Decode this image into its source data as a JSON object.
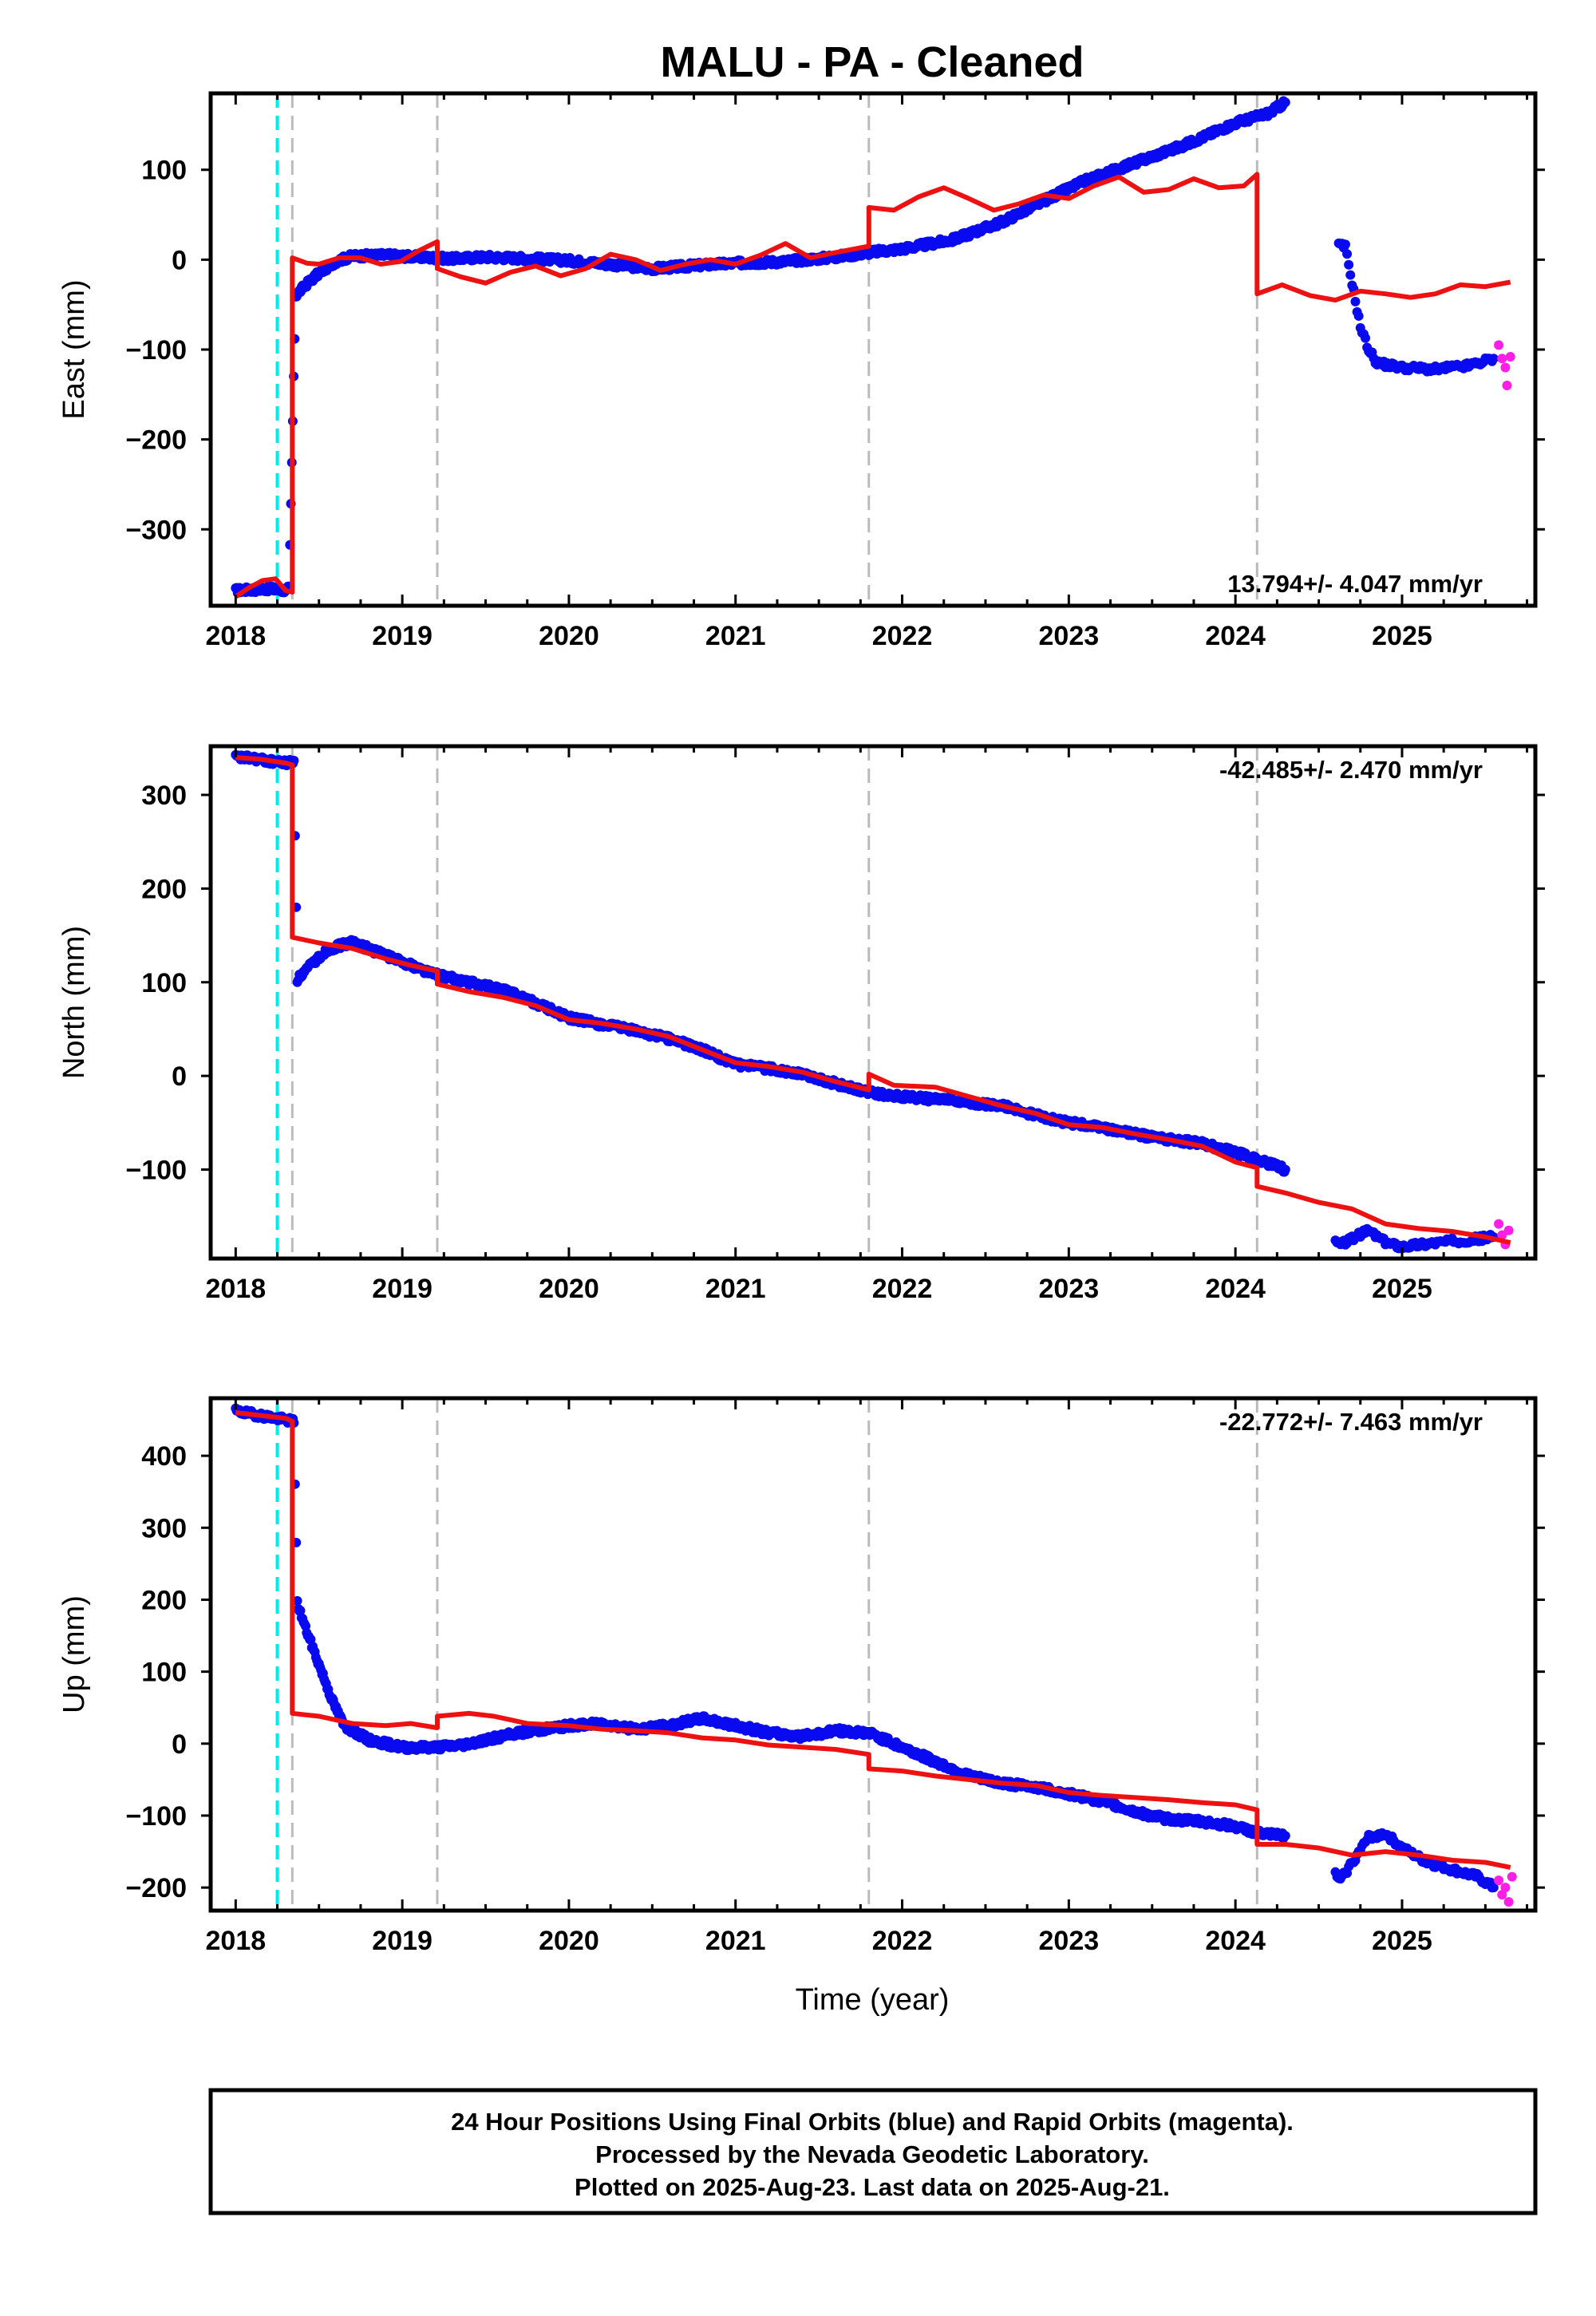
{
  "title": "MALU  - PA - Cleaned",
  "xlabel": "Time (year)",
  "footer": [
    "24 Hour Positions Using Final Orbits (blue) and Rapid Orbits (magenta).",
    "Processed by the Nevada Geodetic Laboratory.",
    "Plotted on 2025-Aug-23. Last data on 2025-Aug-21."
  ],
  "colors": {
    "final": "#0a0af0",
    "rapid": "#ff1ee6",
    "model": "#ee1111",
    "event_cyan": "#00e8ee",
    "event_gray": "#bbbbbb"
  },
  "chart_data": [
    {
      "type": "scatter",
      "panel": "east",
      "ylabel": "East (mm)",
      "xlim": [
        2017.85,
        2025.8
      ],
      "ylim": [
        -385,
        185
      ],
      "yticks": [
        -300,
        -200,
        -100,
        0,
        100
      ],
      "xticks": [
        2018,
        2019,
        2020,
        2021,
        2022,
        2023,
        2024,
        2025
      ],
      "rate_text": "13.794+/- 4.047 mm/yr",
      "rate_position": "bottom-right",
      "events_cyan": [
        2018.25
      ],
      "events_gray": [
        2018.34,
        2019.21,
        2021.8,
        2024.13
      ],
      "final_series": [
        [
          2018.0,
          -368
        ],
        [
          2018.1,
          -367
        ],
        [
          2018.2,
          -366
        ],
        [
          2018.28,
          -368
        ],
        [
          2018.32,
          -366
        ],
        [
          2018.36,
          -40
        ],
        [
          2018.42,
          -28
        ],
        [
          2018.5,
          -15
        ],
        [
          2018.6,
          -2
        ],
        [
          2018.7,
          4
        ],
        [
          2018.9,
          5
        ],
        [
          2019.1,
          3
        ],
        [
          2019.3,
          1
        ],
        [
          2019.5,
          3
        ],
        [
          2019.8,
          1
        ],
        [
          2020.0,
          -1
        ],
        [
          2020.3,
          -6
        ],
        [
          2020.5,
          -10
        ],
        [
          2020.8,
          -6
        ],
        [
          2021.0,
          -4
        ],
        [
          2021.3,
          -2
        ],
        [
          2021.6,
          3
        ],
        [
          2021.8,
          8
        ],
        [
          2022.0,
          12
        ],
        [
          2022.3,
          22
        ],
        [
          2022.6,
          42
        ],
        [
          2022.9,
          70
        ],
        [
          2023.1,
          88
        ],
        [
          2023.4,
          108
        ],
        [
          2023.7,
          128
        ],
        [
          2024.0,
          152
        ],
        [
          2024.2,
          163
        ],
        [
          2024.3,
          175
        ]
      ],
      "final_gap_series": [
        [
          2024.62,
          16
        ],
        [
          2024.66,
          14
        ],
        [
          2024.75,
          -75
        ],
        [
          2024.8,
          -100
        ],
        [
          2024.85,
          -115
        ],
        [
          2025.0,
          -120
        ],
        [
          2025.2,
          -122
        ],
        [
          2025.4,
          -118
        ],
        [
          2025.55,
          -110
        ]
      ],
      "rapid_series": [
        [
          2025.58,
          -95
        ],
        [
          2025.6,
          -110
        ],
        [
          2025.62,
          -120
        ],
        [
          2025.63,
          -140
        ],
        [
          2025.65,
          -108
        ]
      ],
      "model_series": [
        [
          2018.0,
          -375
        ],
        [
          2018.08,
          -365
        ],
        [
          2018.16,
          -357
        ],
        [
          2018.24,
          -355
        ],
        [
          2018.3,
          -368
        ],
        [
          2018.34,
          -370
        ],
        [
          2018.34,
          2
        ],
        [
          2018.43,
          -4
        ],
        [
          2018.5,
          -5
        ],
        [
          2018.62,
          2
        ],
        [
          2018.75,
          2
        ],
        [
          2018.87,
          -5
        ],
        [
          2018.99,
          -2
        ],
        [
          2019.1,
          10
        ],
        [
          2019.21,
          20
        ],
        [
          2019.21,
          -10
        ],
        [
          2019.35,
          -19
        ],
        [
          2019.5,
          -26
        ],
        [
          2019.65,
          -14
        ],
        [
          2019.8,
          -7
        ],
        [
          2019.95,
          -18
        ],
        [
          2020.1,
          -10
        ],
        [
          2020.25,
          6
        ],
        [
          2020.4,
          0
        ],
        [
          2020.55,
          -12
        ],
        [
          2020.7,
          -5
        ],
        [
          2020.85,
          0
        ],
        [
          2021.0,
          -5
        ],
        [
          2021.15,
          5
        ],
        [
          2021.3,
          18
        ],
        [
          2021.45,
          2
        ],
        [
          2021.6,
          8
        ],
        [
          2021.8,
          15
        ],
        [
          2021.8,
          58
        ],
        [
          2021.95,
          55
        ],
        [
          2022.1,
          70
        ],
        [
          2022.25,
          80
        ],
        [
          2022.4,
          68
        ],
        [
          2022.55,
          55
        ],
        [
          2022.7,
          62
        ],
        [
          2022.85,
          72
        ],
        [
          2023.0,
          68
        ],
        [
          2023.15,
          82
        ],
        [
          2023.3,
          92
        ],
        [
          2023.45,
          75
        ],
        [
          2023.6,
          78
        ],
        [
          2023.75,
          90
        ],
        [
          2023.9,
          80
        ],
        [
          2024.05,
          82
        ],
        [
          2024.13,
          95
        ],
        [
          2024.13,
          -38
        ],
        [
          2024.28,
          -28
        ],
        [
          2024.45,
          -40
        ],
        [
          2024.6,
          -45
        ],
        [
          2024.75,
          -35
        ],
        [
          2024.9,
          -38
        ],
        [
          2025.05,
          -42
        ],
        [
          2025.2,
          -38
        ],
        [
          2025.35,
          -28
        ],
        [
          2025.5,
          -30
        ],
        [
          2025.65,
          -25
        ]
      ]
    },
    {
      "type": "scatter",
      "panel": "north",
      "ylabel": "North (mm)",
      "xlim": [
        2017.85,
        2025.8
      ],
      "ylim": [
        -195,
        352
      ],
      "yticks": [
        -100,
        0,
        100,
        200,
        300
      ],
      "xticks": [
        2018,
        2019,
        2020,
        2021,
        2022,
        2023,
        2024,
        2025
      ],
      "rate_text": "-42.485+/- 2.470 mm/yr",
      "rate_position": "top-right",
      "events_cyan": [
        2018.25
      ],
      "events_gray": [
        2018.34,
        2019.21,
        2021.8,
        2024.13
      ],
      "final_series": [
        [
          2018.0,
          340
        ],
        [
          2018.1,
          339
        ],
        [
          2018.2,
          336
        ],
        [
          2018.3,
          334
        ],
        [
          2018.35,
          336
        ],
        [
          2018.37,
          103
        ],
        [
          2018.45,
          118
        ],
        [
          2018.55,
          135
        ],
        [
          2018.7,
          143
        ],
        [
          2018.85,
          132
        ],
        [
          2019.0,
          122
        ],
        [
          2019.2,
          108
        ],
        [
          2019.4,
          100
        ],
        [
          2019.6,
          92
        ],
        [
          2019.8,
          78
        ],
        [
          2020.0,
          62
        ],
        [
          2020.2,
          55
        ],
        [
          2020.4,
          48
        ],
        [
          2020.6,
          40
        ],
        [
          2020.8,
          28
        ],
        [
          2021.0,
          12
        ],
        [
          2021.2,
          8
        ],
        [
          2021.4,
          2
        ],
        [
          2021.6,
          -8
        ],
        [
          2021.8,
          -18
        ],
        [
          2022.0,
          -22
        ],
        [
          2022.2,
          -25
        ],
        [
          2022.4,
          -28
        ],
        [
          2022.6,
          -32
        ],
        [
          2022.8,
          -42
        ],
        [
          2023.0,
          -50
        ],
        [
          2023.2,
          -55
        ],
        [
          2023.4,
          -62
        ],
        [
          2023.6,
          -68
        ],
        [
          2023.8,
          -72
        ],
        [
          2024.0,
          -82
        ],
        [
          2024.15,
          -90
        ],
        [
          2024.3,
          -100
        ]
      ],
      "final_gap_series": [
        [
          2024.6,
          -178
        ],
        [
          2024.63,
          -180
        ],
        [
          2024.8,
          -165
        ],
        [
          2024.9,
          -178
        ],
        [
          2025.0,
          -182
        ],
        [
          2025.2,
          -178
        ],
        [
          2025.4,
          -175
        ],
        [
          2025.55,
          -172
        ]
      ],
      "rapid_series": [
        [
          2025.58,
          -158
        ],
        [
          2025.6,
          -170
        ],
        [
          2025.62,
          -180
        ],
        [
          2025.64,
          -165
        ]
      ],
      "model_series": [
        [
          2018.0,
          340
        ],
        [
          2018.15,
          338
        ],
        [
          2018.3,
          334
        ],
        [
          2018.34,
          332
        ],
        [
          2018.34,
          148
        ],
        [
          2018.5,
          142
        ],
        [
          2018.7,
          136
        ],
        [
          2018.9,
          125
        ],
        [
          2019.05,
          118
        ],
        [
          2019.21,
          112
        ],
        [
          2019.21,
          98
        ],
        [
          2019.4,
          90
        ],
        [
          2019.6,
          84
        ],
        [
          2019.8,
          75
        ],
        [
          2020.0,
          60
        ],
        [
          2020.2,
          56
        ],
        [
          2020.4,
          50
        ],
        [
          2020.6,
          42
        ],
        [
          2020.8,
          28
        ],
        [
          2021.0,
          14
        ],
        [
          2021.2,
          10
        ],
        [
          2021.4,
          4
        ],
        [
          2021.6,
          -6
        ],
        [
          2021.8,
          -15
        ],
        [
          2021.8,
          2
        ],
        [
          2021.95,
          -10
        ],
        [
          2022.2,
          -12
        ],
        [
          2022.4,
          -22
        ],
        [
          2022.6,
          -32
        ],
        [
          2022.8,
          -40
        ],
        [
          2023.0,
          -52
        ],
        [
          2023.2,
          -55
        ],
        [
          2023.4,
          -62
        ],
        [
          2023.6,
          -68
        ],
        [
          2023.8,
          -75
        ],
        [
          2024.0,
          -92
        ],
        [
          2024.13,
          -98
        ],
        [
          2024.13,
          -118
        ],
        [
          2024.3,
          -125
        ],
        [
          2024.5,
          -135
        ],
        [
          2024.7,
          -142
        ],
        [
          2024.9,
          -158
        ],
        [
          2025.1,
          -163
        ],
        [
          2025.3,
          -166
        ],
        [
          2025.5,
          -172
        ],
        [
          2025.65,
          -178
        ]
      ]
    },
    {
      "type": "scatter",
      "panel": "up",
      "ylabel": "Up (mm)",
      "xlim": [
        2017.85,
        2025.8
      ],
      "ylim": [
        -232,
        480
      ],
      "yticks": [
        -200,
        -100,
        0,
        100,
        200,
        300,
        400
      ],
      "xticks": [
        2018,
        2019,
        2020,
        2021,
        2022,
        2023,
        2024,
        2025
      ],
      "rate_text": "-22.772+/- 7.463 mm/yr",
      "rate_position": "top-right",
      "events_cyan": [
        2018.25
      ],
      "events_gray": [
        2018.34,
        2019.21,
        2021.8,
        2024.13
      ],
      "final_series": [
        [
          2018.0,
          462
        ],
        [
          2018.1,
          458
        ],
        [
          2018.2,
          454
        ],
        [
          2018.3,
          450
        ],
        [
          2018.35,
          448
        ],
        [
          2018.37,
          195
        ],
        [
          2018.42,
          160
        ],
        [
          2018.5,
          110
        ],
        [
          2018.58,
          60
        ],
        [
          2018.65,
          25
        ],
        [
          2018.8,
          5
        ],
        [
          2019.0,
          -5
        ],
        [
          2019.2,
          -5
        ],
        [
          2019.35,
          -2
        ],
        [
          2019.5,
          5
        ],
        [
          2019.7,
          15
        ],
        [
          2020.0,
          25
        ],
        [
          2020.2,
          28
        ],
        [
          2020.4,
          20
        ],
        [
          2020.6,
          25
        ],
        [
          2020.8,
          35
        ],
        [
          2021.0,
          25
        ],
        [
          2021.2,
          15
        ],
        [
          2021.4,
          10
        ],
        [
          2021.6,
          18
        ],
        [
          2021.8,
          15
        ],
        [
          2022.0,
          -5
        ],
        [
          2022.2,
          -25
        ],
        [
          2022.4,
          -45
        ],
        [
          2022.6,
          -55
        ],
        [
          2022.8,
          -60
        ],
        [
          2023.0,
          -70
        ],
        [
          2023.2,
          -80
        ],
        [
          2023.4,
          -95
        ],
        [
          2023.6,
          -105
        ],
        [
          2023.8,
          -108
        ],
        [
          2024.0,
          -115
        ],
        [
          2024.15,
          -125
        ],
        [
          2024.3,
          -128
        ]
      ],
      "final_gap_series": [
        [
          2024.6,
          -182
        ],
        [
          2024.63,
          -190
        ],
        [
          2024.8,
          -130
        ],
        [
          2024.9,
          -125
        ],
        [
          2025.0,
          -145
        ],
        [
          2025.15,
          -165
        ],
        [
          2025.3,
          -175
        ],
        [
          2025.45,
          -185
        ],
        [
          2025.55,
          -200
        ]
      ],
      "rapid_series": [
        [
          2025.58,
          -190
        ],
        [
          2025.6,
          -210
        ],
        [
          2025.62,
          -200
        ],
        [
          2025.64,
          -220
        ],
        [
          2025.66,
          -185
        ]
      ],
      "model_series": [
        [
          2018.0,
          460
        ],
        [
          2018.15,
          456
        ],
        [
          2018.3,
          452
        ],
        [
          2018.34,
          448
        ],
        [
          2018.34,
          42
        ],
        [
          2018.5,
          38
        ],
        [
          2018.7,
          28
        ],
        [
          2018.9,
          25
        ],
        [
          2019.05,
          28
        ],
        [
          2019.21,
          22
        ],
        [
          2019.21,
          38
        ],
        [
          2019.4,
          42
        ],
        [
          2019.55,
          38
        ],
        [
          2019.75,
          28
        ],
        [
          2020.0,
          25
        ],
        [
          2020.2,
          20
        ],
        [
          2020.4,
          18
        ],
        [
          2020.6,
          15
        ],
        [
          2020.8,
          8
        ],
        [
          2021.0,
          5
        ],
        [
          2021.2,
          -2
        ],
        [
          2021.4,
          -5
        ],
        [
          2021.6,
          -8
        ],
        [
          2021.8,
          -15
        ],
        [
          2021.8,
          -35
        ],
        [
          2022.0,
          -38
        ],
        [
          2022.2,
          -45
        ],
        [
          2022.4,
          -50
        ],
        [
          2022.6,
          -55
        ],
        [
          2022.8,
          -58
        ],
        [
          2023.0,
          -68
        ],
        [
          2023.2,
          -72
        ],
        [
          2023.4,
          -75
        ],
        [
          2023.6,
          -78
        ],
        [
          2023.8,
          -82
        ],
        [
          2024.0,
          -85
        ],
        [
          2024.13,
          -92
        ],
        [
          2024.13,
          -140
        ],
        [
          2024.3,
          -140
        ],
        [
          2024.5,
          -145
        ],
        [
          2024.7,
          -155
        ],
        [
          2024.9,
          -150
        ],
        [
          2025.1,
          -155
        ],
        [
          2025.3,
          -162
        ],
        [
          2025.5,
          -165
        ],
        [
          2025.65,
          -172
        ]
      ]
    }
  ]
}
